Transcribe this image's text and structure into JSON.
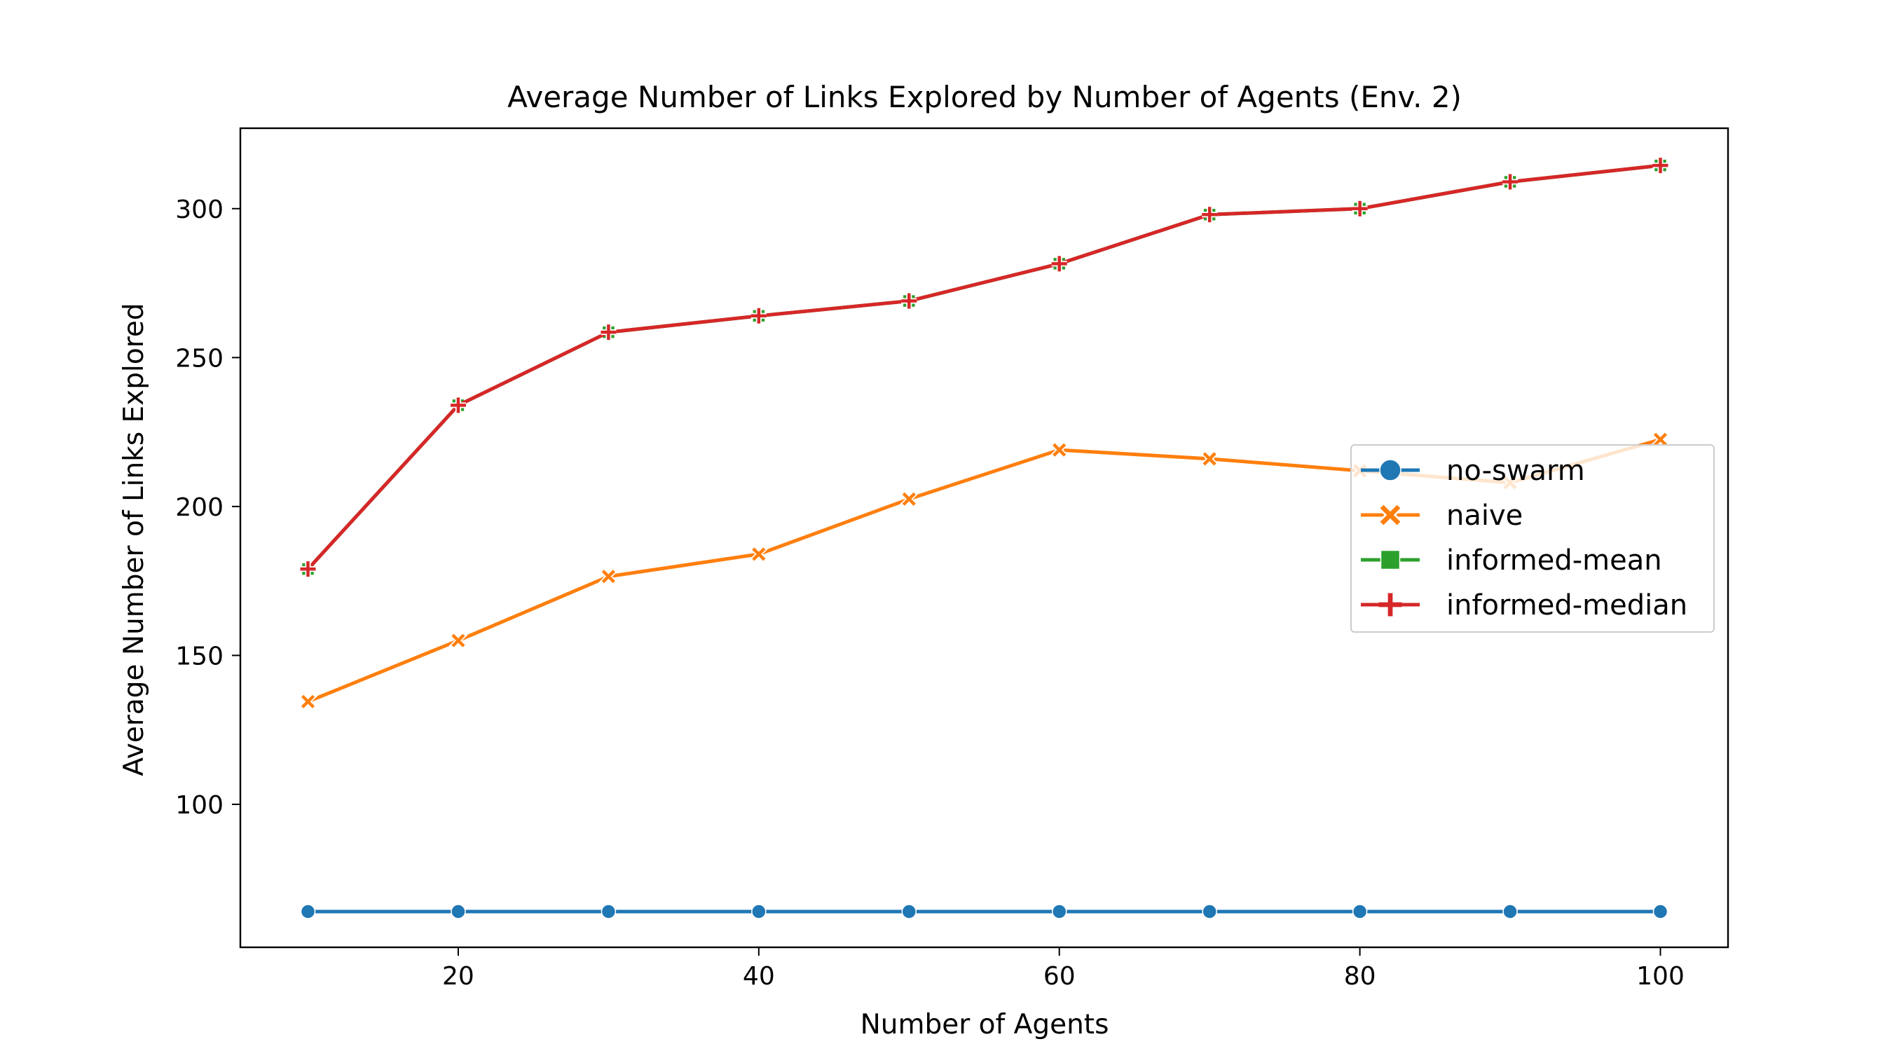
{
  "chart_data": {
    "type": "line",
    "title": "Average Number of Links Explored by Number of Agents (Env. 2)",
    "xlabel": "Number of Agents",
    "ylabel": "Average Number of Links Explored",
    "xlim": [
      5.5,
      104.5
    ],
    "ylim": [
      52,
      327
    ],
    "xticks": [
      20,
      40,
      60,
      80,
      100
    ],
    "yticks": [
      100,
      150,
      200,
      250,
      300
    ],
    "x": [
      10,
      20,
      30,
      40,
      50,
      60,
      70,
      80,
      90,
      100
    ],
    "series": [
      {
        "name": "no-swarm",
        "color": "#1f77b4",
        "marker": "circle",
        "values": [
          64,
          64,
          64,
          64,
          64,
          64,
          64,
          64,
          64,
          64
        ]
      },
      {
        "name": "naive",
        "color": "#ff7f0e",
        "marker": "x",
        "values": [
          134.5,
          155,
          176.5,
          184,
          202.5,
          219,
          216,
          212,
          208,
          222.5
        ]
      },
      {
        "name": "informed-mean",
        "color": "#2ca02c",
        "marker": "square",
        "values": [
          179,
          234,
          258.5,
          264,
          269,
          281.5,
          298,
          300,
          309,
          314.5
        ]
      },
      {
        "name": "informed-median",
        "color": "#d62728",
        "marker": "plus",
        "values": [
          179,
          234,
          258.5,
          264,
          269,
          281.5,
          298,
          300,
          309,
          314.5
        ]
      }
    ],
    "legend_position": "center-right",
    "grid": false
  }
}
